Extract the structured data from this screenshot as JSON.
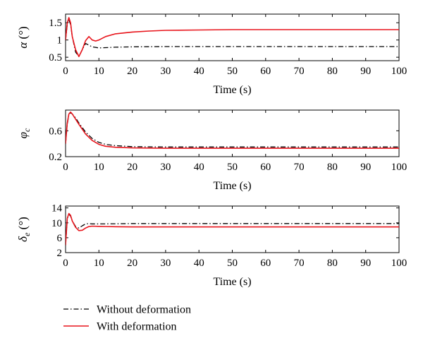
{
  "legend": [
    {
      "label": "Without deformation",
      "style": "dashdot",
      "color": "#000000"
    },
    {
      "label": "With deformation",
      "style": "solid",
      "color": "#e8141b"
    }
  ],
  "chart_data": [
    {
      "type": "line",
      "ylabel": "α (°)",
      "xlabel": "Time (s)",
      "xlim": [
        0,
        100
      ],
      "ylim": [
        0.4,
        1.75
      ],
      "xticks": [
        0,
        10,
        20,
        30,
        40,
        50,
        60,
        70,
        80,
        90,
        100
      ],
      "yticks": [
        0.5,
        1,
        1.5
      ],
      "ytick_labels": [
        "0.5",
        "1",
        "1.5"
      ],
      "series": [
        {
          "name": "Without deformation",
          "style": "dashdot",
          "color": "#000000",
          "x": [
            0,
            0.5,
            1,
            1.5,
            2,
            3,
            4,
            5,
            6,
            7,
            8,
            10,
            15,
            20,
            30,
            50,
            70,
            100
          ],
          "y": [
            1.0,
            1.45,
            1.58,
            1.45,
            1.1,
            0.65,
            0.52,
            0.72,
            0.9,
            0.85,
            0.8,
            0.77,
            0.79,
            0.8,
            0.81,
            0.81,
            0.81,
            0.81
          ]
        },
        {
          "name": "With deformation",
          "style": "solid",
          "color": "#e8141b",
          "x": [
            0,
            0.5,
            1,
            1.5,
            2,
            3,
            4,
            5,
            6,
            7,
            8,
            9,
            10,
            12,
            15,
            20,
            25,
            30,
            40,
            50,
            100
          ],
          "y": [
            1.0,
            1.5,
            1.65,
            1.5,
            1.1,
            0.72,
            0.52,
            0.72,
            0.98,
            1.1,
            1.0,
            0.97,
            1.0,
            1.1,
            1.18,
            1.23,
            1.26,
            1.28,
            1.29,
            1.3,
            1.3
          ]
        }
      ]
    },
    {
      "type": "line",
      "ylabel": "φc",
      "xlabel": "Time (s)",
      "xlim": [
        0,
        100
      ],
      "ylim": [
        0.2,
        0.92
      ],
      "xticks": [
        0,
        10,
        20,
        30,
        40,
        50,
        60,
        70,
        80,
        90,
        100
      ],
      "yticks": [
        0.2,
        0.6
      ],
      "ytick_labels": [
        "0.2",
        "0.6"
      ],
      "series": [
        {
          "name": "Without deformation",
          "style": "dashdot",
          "color": "#000000",
          "x": [
            0,
            0.5,
            1,
            1.5,
            2,
            3,
            4,
            6,
            8,
            10,
            12,
            15,
            20,
            30,
            50,
            100
          ],
          "y": [
            0.4,
            0.7,
            0.85,
            0.88,
            0.86,
            0.8,
            0.72,
            0.58,
            0.48,
            0.42,
            0.39,
            0.37,
            0.355,
            0.35,
            0.35,
            0.35
          ]
        },
        {
          "name": "With deformation",
          "style": "solid",
          "color": "#e8141b",
          "x": [
            0,
            0.5,
            1,
            1.5,
            2,
            3,
            4,
            6,
            8,
            10,
            12,
            15,
            20,
            30,
            50,
            100
          ],
          "y": [
            0.4,
            0.72,
            0.86,
            0.89,
            0.86,
            0.78,
            0.7,
            0.55,
            0.45,
            0.39,
            0.36,
            0.345,
            0.335,
            0.33,
            0.33,
            0.33
          ]
        }
      ]
    },
    {
      "type": "line",
      "ylabel": "δe (°)",
      "xlabel": "Time (s)",
      "xlim": [
        0,
        100
      ],
      "ylim": [
        2,
        14.5
      ],
      "xticks": [
        0,
        10,
        20,
        30,
        40,
        50,
        60,
        70,
        80,
        90,
        100
      ],
      "yticks": [
        2,
        6,
        10,
        14
      ],
      "ytick_labels": [
        "2",
        "6",
        "10",
        "14"
      ],
      "series": [
        {
          "name": "Without deformation",
          "style": "dashdot",
          "color": "#000000",
          "x": [
            0,
            0.5,
            1,
            1.5,
            2,
            3,
            4,
            5,
            6,
            7,
            8,
            10,
            15,
            20,
            50,
            100
          ],
          "y": [
            4.0,
            11.0,
            12.3,
            11.8,
            10.5,
            9.0,
            8.6,
            9.2,
            9.7,
            9.8,
            9.7,
            9.7,
            9.75,
            9.8,
            9.8,
            9.8
          ]
        },
        {
          "name": "With deformation",
          "style": "solid",
          "color": "#e8141b",
          "x": [
            0,
            0.5,
            1,
            1.5,
            2,
            3,
            4,
            5,
            6,
            7,
            8,
            10,
            12,
            15,
            20,
            50,
            100
          ],
          "y": [
            4.0,
            11.2,
            12.5,
            12.0,
            10.5,
            8.8,
            7.9,
            8.0,
            8.6,
            9.0,
            9.1,
            9.05,
            9.0,
            8.95,
            8.9,
            8.9,
            8.9
          ]
        }
      ]
    }
  ]
}
